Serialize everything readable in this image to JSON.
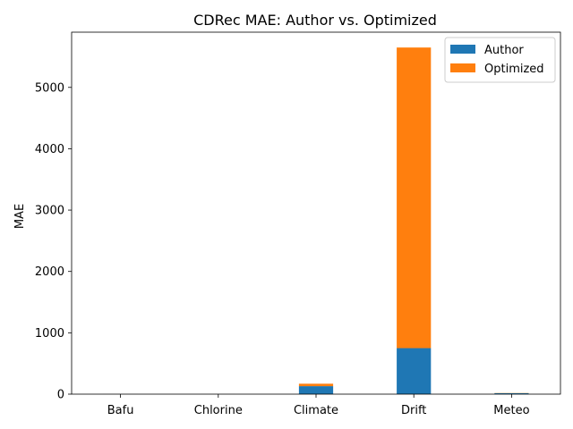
{
  "chart_data": {
    "type": "bar",
    "stacked": true,
    "title": "CDRec MAE: Author vs. Optimized",
    "xlabel": "",
    "ylabel": "MAE",
    "categories": [
      "Bafu",
      "Chlorine",
      "Climate",
      "Drift",
      "Meteo"
    ],
    "series": [
      {
        "name": "Author",
        "color": "#1f77b4",
        "values": [
          0.5,
          0.2,
          130,
          750,
          15
        ]
      },
      {
        "name": "Optimized",
        "color": "#ff7f0e",
        "values": [
          0.3,
          0.1,
          40,
          4900,
          3
        ]
      }
    ],
    "ylim": [
      0,
      5900
    ],
    "yticks": [
      0,
      1000,
      2000,
      3000,
      4000,
      5000
    ],
    "grid": false,
    "legend_position": "top-right"
  }
}
